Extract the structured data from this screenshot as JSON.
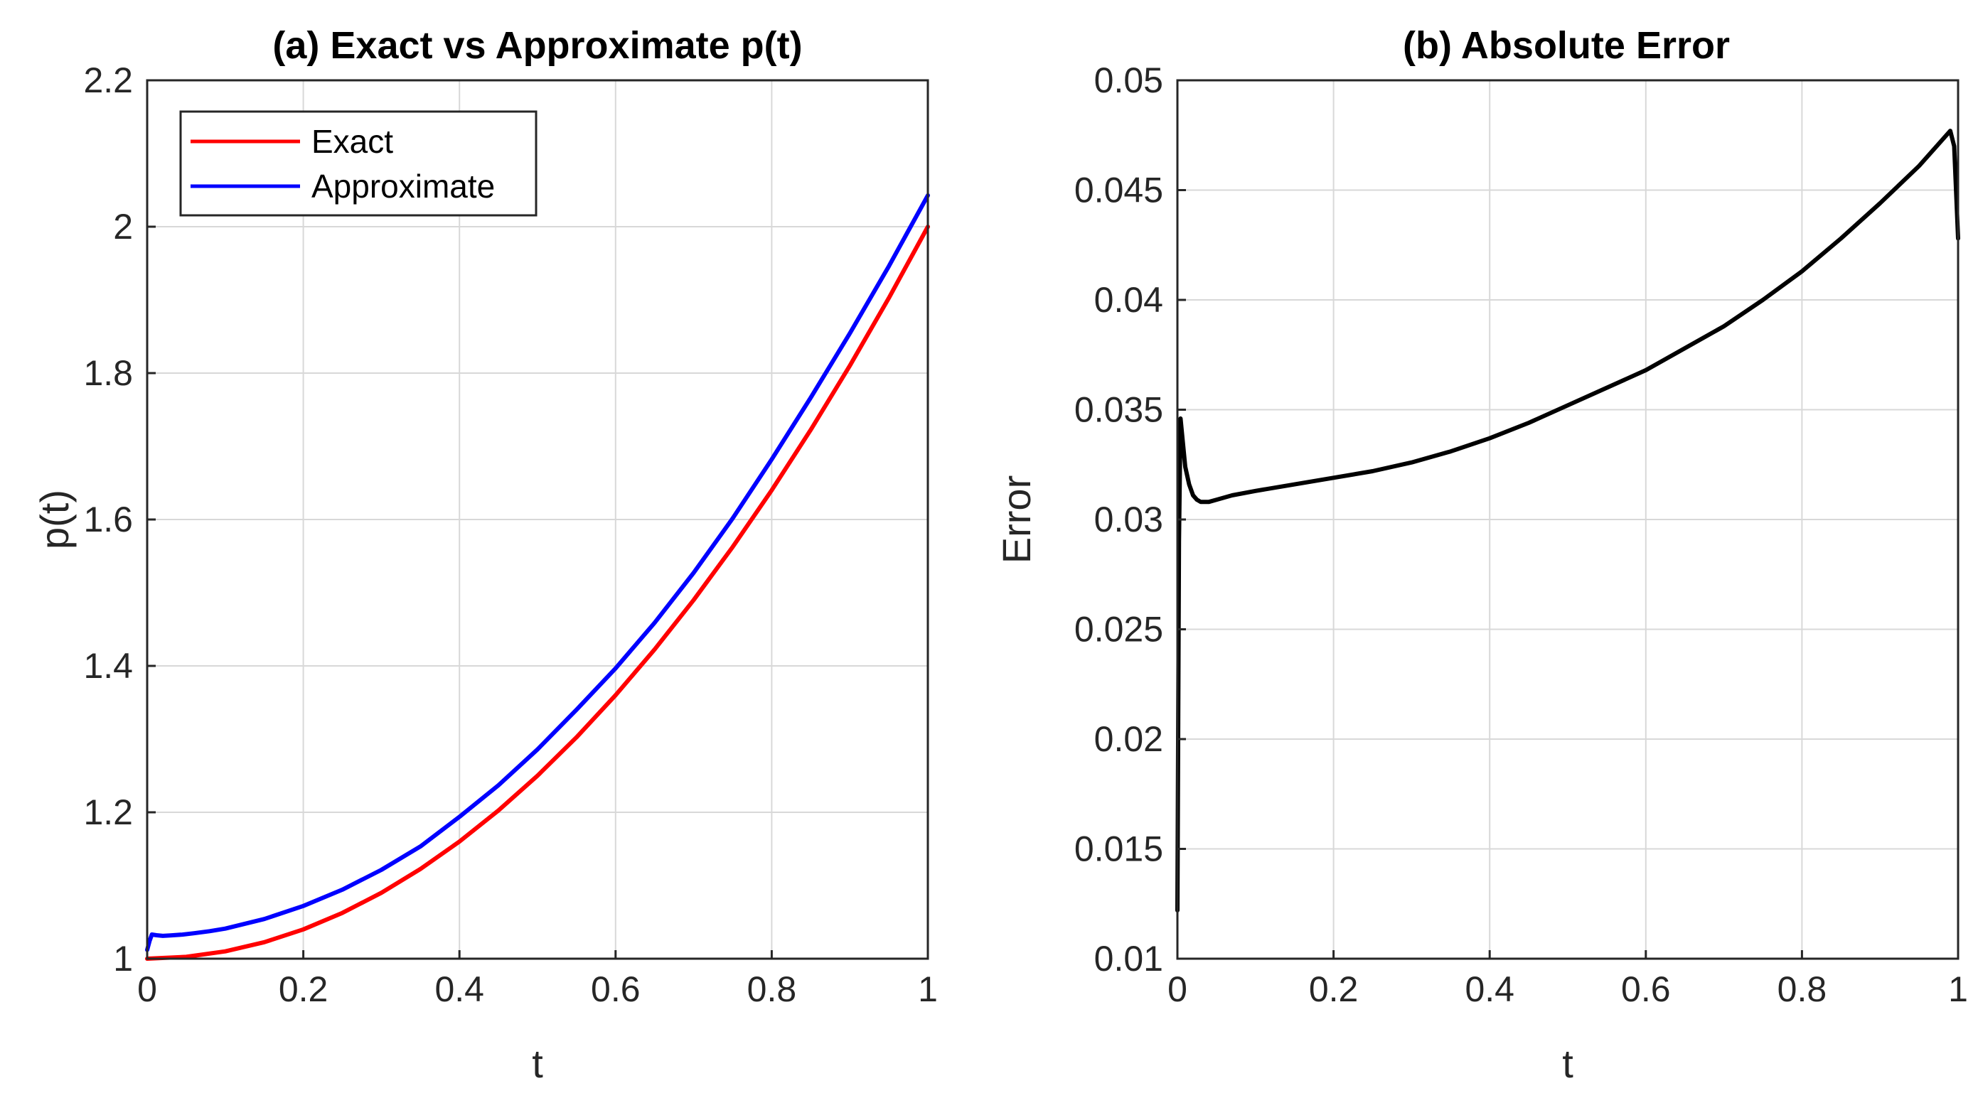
{
  "chart_data": [
    {
      "type": "line",
      "title": "(a) Exact vs Approximate p(t)",
      "xlabel": "t",
      "ylabel": "p(t)",
      "xlim": [
        0,
        1
      ],
      "ylim": [
        1,
        2.2
      ],
      "grid": true,
      "xticks": [
        "0",
        "0.2",
        "0.4",
        "0.6",
        "0.8",
        "1"
      ],
      "yticks": [
        "1",
        "1.2",
        "1.4",
        "1.6",
        "1.8",
        "2",
        "2.2"
      ],
      "legend": {
        "position": "top-left",
        "entries": [
          "Exact",
          "Approximate"
        ]
      },
      "series": [
        {
          "name": "Exact",
          "color": "#ff0000",
          "x": [
            0,
            0.05,
            0.1,
            0.15,
            0.2,
            0.25,
            0.3,
            0.35,
            0.4,
            0.45,
            0.5,
            0.55,
            0.6,
            0.65,
            0.7,
            0.75,
            0.8,
            0.85,
            0.9,
            0.95,
            1
          ],
          "y": [
            1.0,
            1.0025,
            1.01,
            1.0225,
            1.04,
            1.0625,
            1.09,
            1.1225,
            1.16,
            1.2025,
            1.25,
            1.3025,
            1.36,
            1.4225,
            1.49,
            1.5625,
            1.64,
            1.7225,
            1.81,
            1.9025,
            2.0
          ]
        },
        {
          "name": "Approximate",
          "color": "#0000ff",
          "x": [
            0,
            0.003,
            0.006,
            0.012,
            0.02,
            0.03,
            0.045,
            0.06,
            0.08,
            0.1,
            0.15,
            0.2,
            0.25,
            0.3,
            0.35,
            0.4,
            0.45,
            0.5,
            0.55,
            0.6,
            0.65,
            0.7,
            0.75,
            0.8,
            0.85,
            0.9,
            0.95,
            1
          ],
          "y": [
            1.012,
            1.024,
            1.033,
            1.032,
            1.0312,
            1.0318,
            1.0329,
            1.0348,
            1.0376,
            1.0411,
            1.0542,
            1.072,
            1.0943,
            1.1214,
            1.1533,
            1.1938,
            1.237,
            1.2859,
            1.3402,
            1.3967,
            1.4589,
            1.5272,
            1.6016,
            1.6821,
            1.7665,
            1.8542,
            1.9459,
            2.0428
          ]
        }
      ]
    },
    {
      "type": "line",
      "title": "(b) Absolute Error",
      "xlabel": "t",
      "ylabel": "Error",
      "xlim": [
        0,
        1
      ],
      "ylim": [
        0.01,
        0.05
      ],
      "grid": true,
      "xticks": [
        "0",
        "0.2",
        "0.4",
        "0.6",
        "0.8",
        "1"
      ],
      "yticks": [
        "0.01",
        "0.015",
        "0.02",
        "0.025",
        "0.03",
        "0.035",
        "0.04",
        "0.045",
        "0.05"
      ],
      "series": [
        {
          "name": "Error",
          "color": "#000000",
          "x": [
            0,
            0.002,
            0.004,
            0.007,
            0.01,
            0.015,
            0.02,
            0.025,
            0.03,
            0.04,
            0.05,
            0.07,
            0.1,
            0.15,
            0.2,
            0.25,
            0.3,
            0.35,
            0.4,
            0.45,
            0.5,
            0.55,
            0.6,
            0.65,
            0.7,
            0.75,
            0.8,
            0.85,
            0.9,
            0.95,
            0.99,
            0.995,
            1
          ],
          "y": [
            0.0122,
            0.029,
            0.0346,
            0.0335,
            0.0324,
            0.0316,
            0.0311,
            0.0309,
            0.0308,
            0.0308,
            0.0309,
            0.0311,
            0.0313,
            0.0316,
            0.0319,
            0.0322,
            0.0326,
            0.0331,
            0.0337,
            0.0344,
            0.0352,
            0.036,
            0.0368,
            0.0378,
            0.0388,
            0.04,
            0.0413,
            0.0428,
            0.0444,
            0.0461,
            0.0477,
            0.047,
            0.0428
          ]
        }
      ]
    }
  ]
}
